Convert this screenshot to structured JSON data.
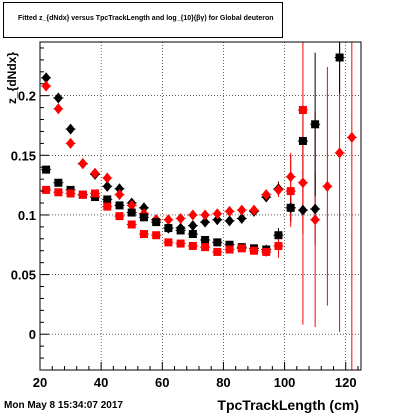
{
  "title": "Fitted z_{dNdx} versus TpcTrackLength and log_{10}(βγ) for Global deuteron",
  "footer": "Mon May  8 15:34:07 2017",
  "chart_data": {
    "type": "scatter",
    "xlabel": "TpcTrackLength (cm)",
    "ylabel": "z_{dNdx}",
    "xlim": [
      20,
      125
    ],
    "ylim": [
      -0.03,
      0.245
    ],
    "xticks": [
      20,
      40,
      60,
      80,
      100,
      120
    ],
    "yticks": [
      0,
      0.05,
      0.1,
      0.15,
      0.2
    ],
    "ytick_labels": [
      "0",
      "0.05",
      "0.1",
      "0.15",
      "0.2"
    ],
    "grid": true,
    "series": [
      {
        "marker": "diamond",
        "color": "#000000",
        "points": [
          [
            22,
            0.215
          ],
          [
            26,
            0.198
          ],
          [
            30,
            0.172
          ],
          [
            34,
            0.143
          ],
          [
            38,
            0.134
          ],
          [
            42,
            0.124
          ],
          [
            46,
            0.122
          ],
          [
            50,
            0.11
          ],
          [
            54,
            0.106
          ],
          [
            58,
            0.096
          ],
          [
            62,
            0.089
          ],
          [
            66,
            0.089
          ],
          [
            70,
            0.091
          ],
          [
            74,
            0.094
          ],
          [
            78,
            0.096
          ],
          [
            82,
            0.095
          ],
          [
            86,
            0.097
          ],
          [
            90,
            0.103
          ],
          [
            94,
            0.115
          ],
          [
            98,
            0.122
          ],
          [
            102,
            0.106
          ],
          [
            106,
            0.104
          ],
          [
            110,
            0.105
          ]
        ],
        "errors": [
          [
            0.003,
            0.004
          ],
          [
            0.003,
            0.003
          ],
          [
            0.003,
            0.003
          ],
          [
            0.002,
            0.002
          ],
          [
            0.002,
            0.002
          ],
          [
            0.002,
            0.002
          ],
          [
            0.002,
            0.002
          ],
          [
            0.002,
            0.002
          ],
          [
            0.002,
            0.002
          ],
          [
            0.002,
            0.002
          ],
          [
            0.002,
            0.002
          ],
          [
            0.002,
            0.002
          ],
          [
            0.002,
            0.002
          ],
          [
            0.002,
            0.002
          ],
          [
            0.002,
            0.002
          ],
          [
            0.002,
            0.002
          ],
          [
            0.002,
            0.002
          ],
          [
            0.003,
            0.003
          ],
          [
            0.004,
            0.004
          ],
          [
            0.006,
            0.006
          ],
          [
            0.01,
            0.01
          ],
          [
            0.02,
            0.02
          ],
          [
            0.03,
            0.03
          ]
        ]
      },
      {
        "marker": "diamond",
        "color": "#ff0000",
        "points": [
          [
            22,
            0.208
          ],
          [
            26,
            0.189
          ],
          [
            30,
            0.16
          ],
          [
            34,
            0.143
          ],
          [
            38,
            0.135
          ],
          [
            42,
            0.131
          ],
          [
            46,
            0.117
          ],
          [
            50,
            0.108
          ],
          [
            54,
            0.101
          ],
          [
            58,
            0.096
          ],
          [
            62,
            0.096
          ],
          [
            66,
            0.097
          ],
          [
            70,
            0.1
          ],
          [
            74,
            0.1
          ],
          [
            78,
            0.101
          ],
          [
            82,
            0.103
          ],
          [
            86,
            0.104
          ],
          [
            90,
            0.104
          ],
          [
            94,
            0.117
          ],
          [
            98,
            0.121
          ],
          [
            102,
            0.132
          ],
          [
            106,
            0.127
          ],
          [
            110,
            0.096
          ],
          [
            114,
            0.124
          ],
          [
            118,
            0.152
          ],
          [
            122,
            0.165
          ]
        ],
        "errors": [
          [
            0.003,
            0.003
          ],
          [
            0.003,
            0.003
          ],
          [
            0.003,
            0.003
          ],
          [
            0.002,
            0.002
          ],
          [
            0.002,
            0.002
          ],
          [
            0.002,
            0.002
          ],
          [
            0.002,
            0.002
          ],
          [
            0.002,
            0.002
          ],
          [
            0.002,
            0.002
          ],
          [
            0.002,
            0.002
          ],
          [
            0.002,
            0.002
          ],
          [
            0.002,
            0.002
          ],
          [
            0.002,
            0.002
          ],
          [
            0.002,
            0.002
          ],
          [
            0.002,
            0.002
          ],
          [
            0.002,
            0.002
          ],
          [
            0.002,
            0.002
          ],
          [
            0.003,
            0.003
          ],
          [
            0.004,
            0.004
          ],
          [
            0.006,
            0.006
          ],
          [
            0.02,
            0.02
          ],
          [
            0.04,
            0.04
          ],
          [
            0.09,
            0.09
          ],
          [
            0.1,
            0.1
          ],
          [
            0.15,
            0.15
          ],
          [
            0.2,
            0.2
          ]
        ]
      },
      {
        "marker": "square",
        "color": "#000000",
        "points": [
          [
            22,
            0.138
          ],
          [
            26,
            0.127
          ],
          [
            30,
            0.121
          ],
          [
            34,
            0.117
          ],
          [
            38,
            0.115
          ],
          [
            42,
            0.113
          ],
          [
            46,
            0.108
          ],
          [
            50,
            0.102
          ],
          [
            54,
            0.098
          ],
          [
            58,
            0.094
          ],
          [
            62,
            0.089
          ],
          [
            66,
            0.087
          ],
          [
            70,
            0.084
          ],
          [
            74,
            0.079
          ],
          [
            78,
            0.077
          ],
          [
            82,
            0.075
          ],
          [
            86,
            0.073
          ],
          [
            90,
            0.072
          ],
          [
            94,
            0.071
          ],
          [
            98,
            0.083
          ],
          [
            102,
            0.106
          ],
          [
            106,
            0.162
          ],
          [
            110,
            0.176
          ],
          [
            118,
            0.232
          ]
        ],
        "errors": [
          [
            0.003,
            0.003
          ],
          [
            0.002,
            0.002
          ],
          [
            0.002,
            0.002
          ],
          [
            0.002,
            0.002
          ],
          [
            0.002,
            0.002
          ],
          [
            0.002,
            0.002
          ],
          [
            0.002,
            0.002
          ],
          [
            0.002,
            0.002
          ],
          [
            0.002,
            0.002
          ],
          [
            0.002,
            0.002
          ],
          [
            0.002,
            0.002
          ],
          [
            0.002,
            0.002
          ],
          [
            0.002,
            0.002
          ],
          [
            0.002,
            0.002
          ],
          [
            0.002,
            0.002
          ],
          [
            0.002,
            0.002
          ],
          [
            0.002,
            0.002
          ],
          [
            0.003,
            0.003
          ],
          [
            0.004,
            0.004
          ],
          [
            0.006,
            0.006
          ],
          [
            0.012,
            0.012
          ],
          [
            0.03,
            0.03
          ],
          [
            0.06,
            0.06
          ],
          [
            0.03,
            0.03
          ]
        ]
      },
      {
        "marker": "square",
        "color": "#ff0000",
        "points": [
          [
            22,
            0.121
          ],
          [
            26,
            0.119
          ],
          [
            30,
            0.118
          ],
          [
            34,
            0.117
          ],
          [
            38,
            0.118
          ],
          [
            42,
            0.107
          ],
          [
            46,
            0.099
          ],
          [
            50,
            0.092
          ],
          [
            54,
            0.084
          ],
          [
            58,
            0.083
          ],
          [
            62,
            0.077
          ],
          [
            66,
            0.076
          ],
          [
            70,
            0.074
          ],
          [
            74,
            0.073
          ],
          [
            78,
            0.069
          ],
          [
            82,
            0.071
          ],
          [
            86,
            0.072
          ],
          [
            90,
            0.07
          ],
          [
            94,
            0.069
          ],
          [
            98,
            0.074
          ],
          [
            102,
            0.12
          ],
          [
            106,
            0.188
          ]
        ],
        "errors": [
          [
            0.003,
            0.003
          ],
          [
            0.002,
            0.002
          ],
          [
            0.002,
            0.002
          ],
          [
            0.002,
            0.002
          ],
          [
            0.002,
            0.002
          ],
          [
            0.002,
            0.002
          ],
          [
            0.002,
            0.002
          ],
          [
            0.002,
            0.002
          ],
          [
            0.002,
            0.002
          ],
          [
            0.002,
            0.002
          ],
          [
            0.002,
            0.002
          ],
          [
            0.002,
            0.002
          ],
          [
            0.002,
            0.002
          ],
          [
            0.002,
            0.002
          ],
          [
            0.002,
            0.002
          ],
          [
            0.002,
            0.002
          ],
          [
            0.002,
            0.002
          ],
          [
            0.003,
            0.003
          ],
          [
            0.004,
            0.004
          ],
          [
            0.01,
            0.01
          ],
          [
            0.03,
            0.03
          ],
          [
            0.18,
            0.18
          ]
        ]
      }
    ]
  }
}
